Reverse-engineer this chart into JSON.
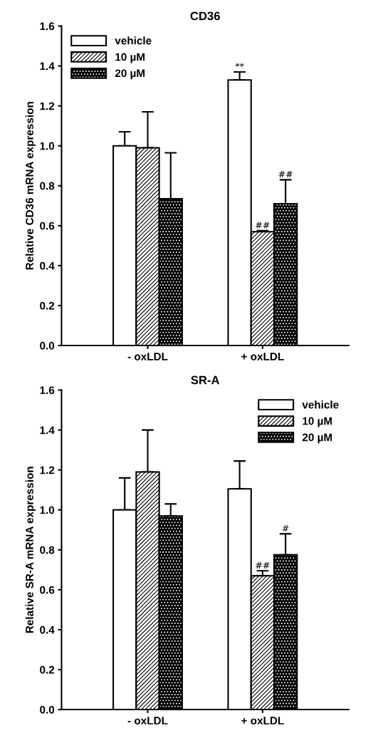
{
  "chart_data": [
    {
      "type": "bar",
      "title": "CD36",
      "ylabel": "Relative CD36 mRNA expression",
      "categories": [
        "- oxLDL",
        "+ oxLDL"
      ],
      "series": [
        {
          "name": "vehicle",
          "color": "#ffffff",
          "values": [
            1.0,
            1.33
          ],
          "errors": [
            [
              1.0,
              1.07
            ],
            [
              1.33,
              1.37
            ]
          ],
          "value_labels": [
            null,
            "**"
          ]
        },
        {
          "name": "10 µM",
          "color": "#000000",
          "values": [
            0.99,
            0.57
          ],
          "errors": [
            [
              0.99,
              1.17
            ],
            [
              0.57,
              0.575
            ]
          ],
          "value_labels": [
            null,
            "##"
          ]
        },
        {
          "name": "20 µM",
          "color": "#000000",
          "values": [
            0.735,
            0.71
          ],
          "errors": [
            [
              0.735,
              0.965
            ],
            [
              0.71,
              0.83
            ]
          ],
          "value_labels": [
            null,
            "##"
          ]
        }
      ],
      "ylim": [
        0,
        1.6
      ],
      "yticks": [
        {
          "value": 0,
          "label": "0.0"
        },
        {
          "value": 0.2,
          "label": "0.2"
        },
        {
          "value": 0.4,
          "label": "0.4"
        },
        {
          "value": 0.6,
          "label": "0.6"
        },
        {
          "value": 0.8,
          "label": "0.8"
        },
        {
          "value": 1.0,
          "label": "1.0"
        },
        {
          "value": 1.2,
          "label": "1.2"
        },
        {
          "value": 1.4,
          "label": "1.4"
        },
        {
          "value": 1.6,
          "label": "1.6"
        }
      ],
      "legend": "top left",
      "grid": false
    },
    {
      "type": "bar",
      "title": "SR-A",
      "ylabel": "Relative SR-A mRNA expression",
      "categories": [
        "- oxLDL",
        "+ oxLDL"
      ],
      "series": [
        {
          "name": "vehicle",
          "color": "#ffffff",
          "values": [
            1.0,
            1.105
          ],
          "errors": [
            [
              1.0,
              1.16
            ],
            [
              1.105,
              1.245
            ]
          ]
        },
        {
          "name": "10 µM",
          "color": "#000000",
          "values": [
            1.19,
            0.67
          ],
          "errors": [
            [
              1.19,
              1.4
            ],
            [
              0.67,
              0.695
            ]
          ],
          "value_labels": [
            null,
            "##"
          ]
        },
        {
          "name": "20 µM",
          "color": "#000000",
          "values": [
            0.97,
            0.775
          ],
          "errors": [
            [
              0.97,
              1.03
            ],
            [
              0.775,
              0.88
            ]
          ],
          "value_labels": [
            null,
            "#"
          ]
        }
      ],
      "ylim": [
        0,
        1.6
      ],
      "yticks": [
        {
          "value": 0,
          "label": "0.0"
        },
        {
          "value": 0.2,
          "label": "0.2"
        },
        {
          "value": 0.4,
          "label": "0.4"
        },
        {
          "value": 0.6,
          "label": "0.6"
        },
        {
          "value": 0.8,
          "label": "0.8"
        },
        {
          "value": 1.0,
          "label": "1.0"
        },
        {
          "value": 1.2,
          "label": "1.2"
        },
        {
          "value": 1.4,
          "label": "1.4"
        },
        {
          "value": 1.6,
          "label": "1.6"
        }
      ],
      "legend": "top right",
      "grid": false
    }
  ]
}
